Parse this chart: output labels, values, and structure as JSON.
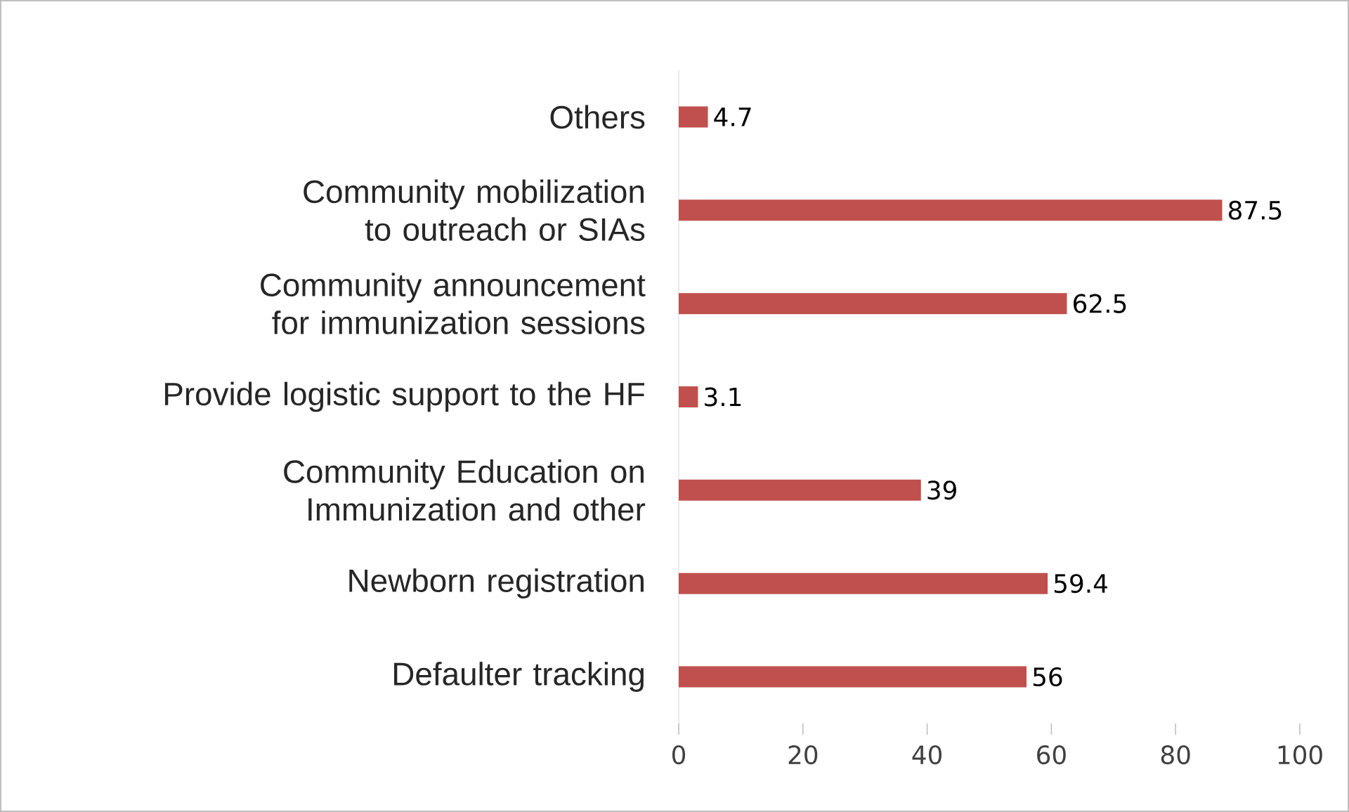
{
  "chart_data": {
    "type": "bar",
    "orientation": "horizontal",
    "categories": [
      "Others",
      "Community mobilization to outreach or SIAs",
      "Community announcement for immunization sessions",
      "Provide logistic support to the HF",
      "Community Education on Immunization and other",
      "Newborn registration",
      "Defaulter tracking"
    ],
    "values": [
      4.7,
      87.5,
      62.5,
      3.1,
      39,
      59.4,
      56
    ],
    "color": "#c0504d",
    "data_labels": true,
    "xlim": [
      0,
      100
    ],
    "xticks": [
      0,
      20,
      40,
      60,
      80,
      100
    ]
  }
}
